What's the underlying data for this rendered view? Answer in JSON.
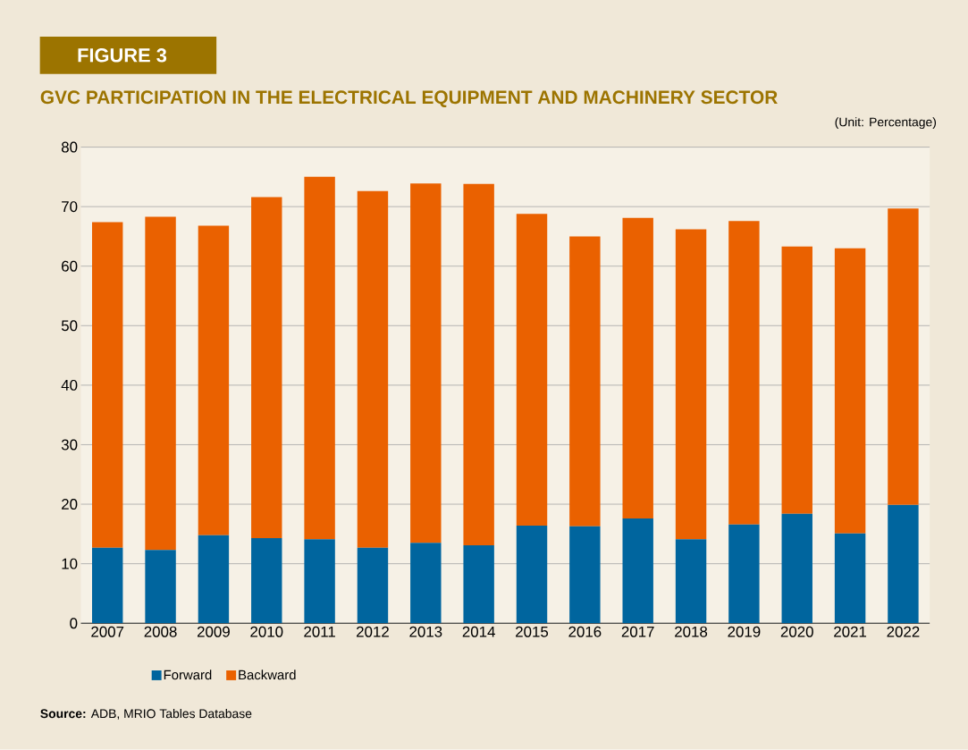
{
  "chart_data": {
    "type": "bar",
    "stacked": true,
    "title": "FIGURE 3",
    "subtitle": "GVC PARTICIPATION IN THE ELECTRICAL EQUIPMENT AND MACHINERY SECTOR",
    "annotations": [
      "(Unit: Percentage)",
      "**Source:** ADB, MRIO Tables Database"
    ],
    "categories": [
      "2007",
      "2008",
      "2009",
      "2010",
      "2011",
      "2012",
      "2013",
      "2014",
      "2015",
      "2016",
      "2017",
      "2018",
      "2019",
      "2020",
      "2021",
      "2022"
    ],
    "series": [
      {
        "name": "Forward",
        "color": "#00659e",
        "values": [
          12.7,
          12.3,
          14.8,
          14.3,
          14.1,
          12.7,
          13.5,
          13.1,
          16.4,
          16.3,
          17.6,
          14.1,
          16.6,
          18.4,
          15.1,
          19.9
        ]
      },
      {
        "name": "Backward",
        "color": "#ea6100",
        "values": [
          54.7,
          56.0,
          52.0,
          57.3,
          60.9,
          59.9,
          60.4,
          60.7,
          52.4,
          48.7,
          50.5,
          52.1,
          51.0,
          44.9,
          47.9,
          49.8
        ]
      }
    ],
    "ylim": [
      0,
      80
    ],
    "yticks": [
      0,
      10,
      20,
      30,
      40,
      50,
      60,
      70,
      80
    ],
    "grid": "y",
    "legend": "bottom"
  }
}
